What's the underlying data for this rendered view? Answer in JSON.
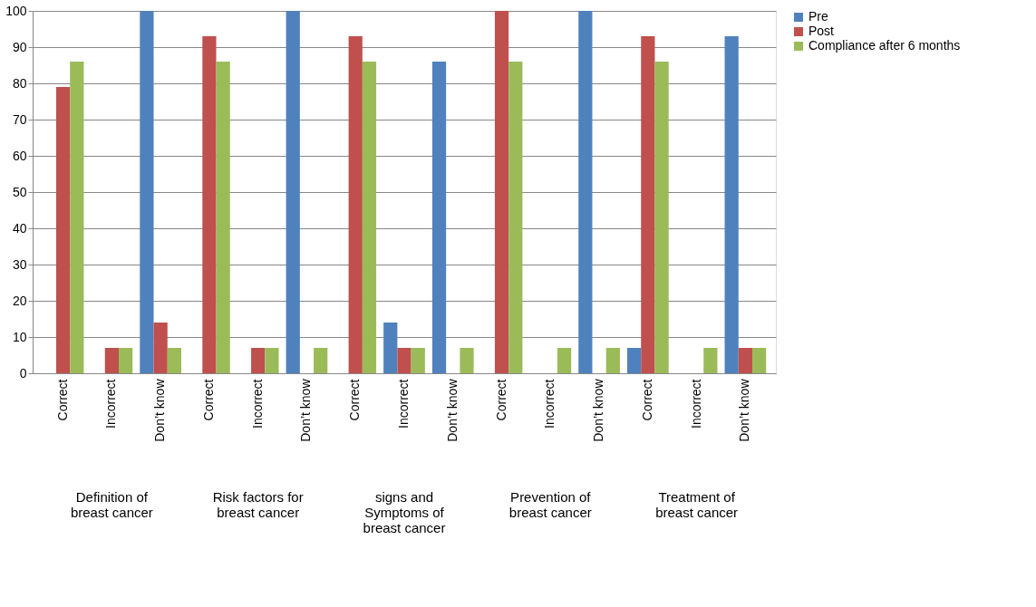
{
  "chart_data": {
    "type": "bar",
    "categories": [
      "Correct",
      "Incorrect",
      "Don’t know",
      "Correct",
      "Incorrect",
      "Don’t know",
      "Correct",
      "Incorrect",
      "Don’t know",
      "Correct",
      "Incorrect",
      "Don’t know",
      "Correct",
      "Incorrect",
      "Don’t know"
    ],
    "series": [
      {
        "name": "Pre",
        "color": "#4f81bd",
        "values": [
          0,
          0,
          100,
          0,
          0,
          100,
          0,
          14,
          86,
          0,
          0,
          100,
          7,
          0,
          93
        ]
      },
      {
        "name": "Post",
        "color": "#c0504d",
        "values": [
          79,
          7,
          14,
          93,
          7,
          0,
          93,
          7,
          0,
          100,
          0,
          0,
          93,
          0,
          7
        ]
      },
      {
        "name": "Compliance after 6 months",
        "color": "#9bbb59",
        "values": [
          86,
          7,
          7,
          86,
          7,
          7,
          86,
          7,
          7,
          86,
          7,
          7,
          86,
          7,
          7
        ]
      }
    ],
    "annotations": [
      "Definition of breast cancer",
      "Risk factors for breast cancer",
      "signs and Symptoms of breast cancer",
      "Prevention of breast cancer",
      "Treatment of breast cancer"
    ],
    "ylim": [
      0,
      100
    ],
    "yticks": [
      0,
      10,
      20,
      30,
      40,
      50,
      60,
      70,
      80,
      90,
      100
    ],
    "grid": "y",
    "legend": "right"
  }
}
